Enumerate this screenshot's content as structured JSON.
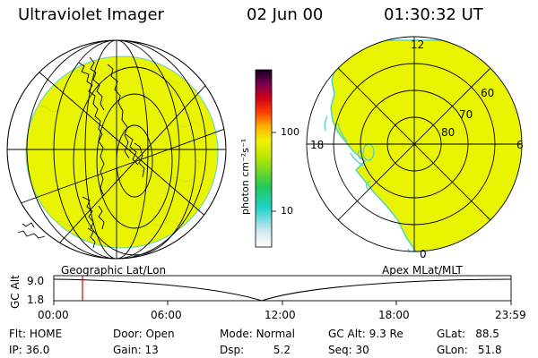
{
  "header": {
    "instrument": "Ultraviolet Imager",
    "date": "02 Jun 00",
    "time": "01:30:32 UT"
  },
  "colorbar": {
    "unit_label": "photon cm⁻²s⁻¹",
    "ticks": [
      "100",
      "10"
    ]
  },
  "polar_plot": {
    "mlt_labels": {
      "top": "12",
      "left": "18",
      "right": "6",
      "bottom": "0"
    },
    "lat_labels": [
      "60",
      "70",
      "80"
    ]
  },
  "left_panel_caption": "Geographic Lat/Lon",
  "right_panel_caption": "Apex MLat/MLT",
  "altitude_strip": {
    "axis_label": "GC Alt",
    "y_ticks": [
      "9.0",
      "1.8"
    ],
    "time_ticks": [
      "00:00",
      "06:00",
      "12:00",
      "18:00",
      "23:59"
    ]
  },
  "info_rows": [
    [
      {
        "key": "Flt:",
        "value": "HOME"
      },
      {
        "key": "Door:",
        "value": "Open"
      },
      {
        "key": "Mode:",
        "value": "Normal"
      },
      {
        "key": "GC Alt:",
        "value": "9.3 Re"
      },
      {
        "key": "GLat:",
        "value": "88.5"
      }
    ],
    [
      {
        "key": "IP:",
        "value": "36.0"
      },
      {
        "key": "Gain:",
        "value": "13"
      },
      {
        "key": "Dsp:",
        "value": "5.2"
      },
      {
        "key": "Seq:",
        "value": "30"
      },
      {
        "key": "GLon:",
        "value": "51.8"
      }
    ]
  ],
  "colors": {
    "image_fill": "#e8f400",
    "image_edge": "#5ad2c8",
    "marker": "#d40000"
  }
}
